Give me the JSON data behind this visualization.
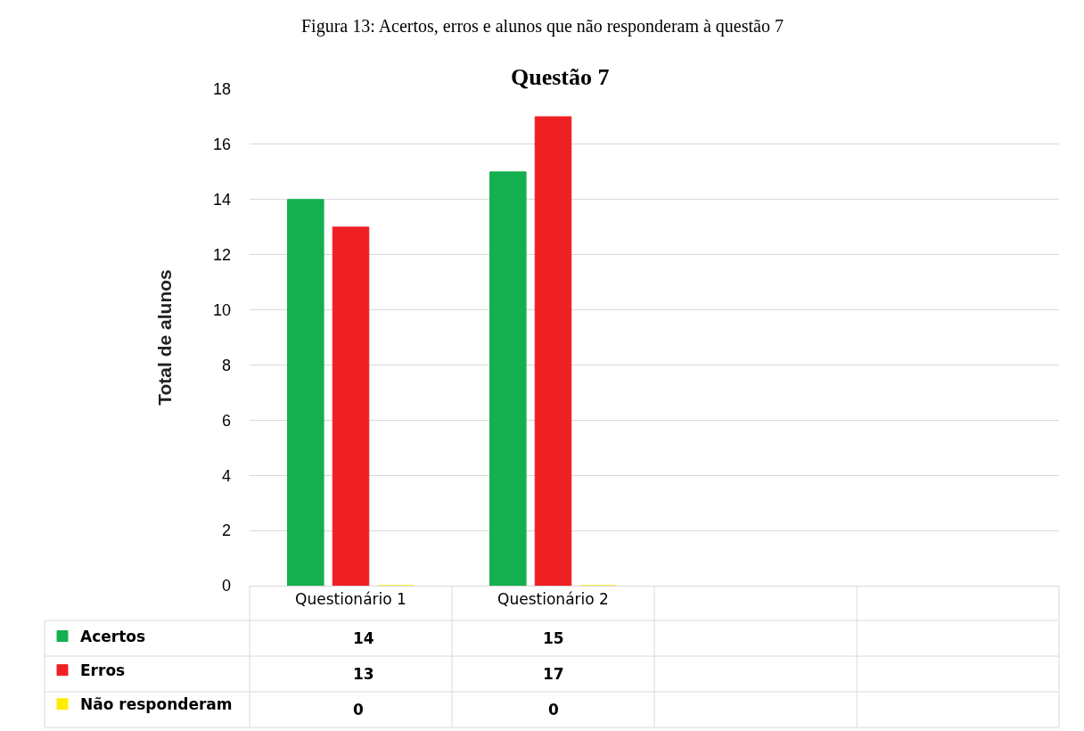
{
  "chart_data": {
    "type": "bar",
    "title": "Questão 7",
    "ylabel": "Total de alunos",
    "annotations": [
      "Figura 13: Acertos, erros e alunos que não responderam à questão 7"
    ],
    "categories": [
      "Questionário 1",
      "Questionário 2",
      null,
      null
    ],
    "series": [
      {
        "name": "Acertos",
        "color": "#14b050",
        "values": [
          14,
          15,
          null,
          null
        ]
      },
      {
        "name": "Erros",
        "color": "#ee2024",
        "values": [
          13,
          17,
          null,
          null
        ]
      },
      {
        "name": "Não responderam",
        "color": "#ffec00",
        "values": [
          0,
          0,
          null,
          null
        ]
      }
    ],
    "ylim": [
      0,
      18
    ],
    "yticks": [
      0,
      2,
      4,
      6,
      8,
      10,
      12,
      14,
      16,
      18
    ],
    "grid": "y",
    "legend": "bottom",
    "data_labels": true
  }
}
